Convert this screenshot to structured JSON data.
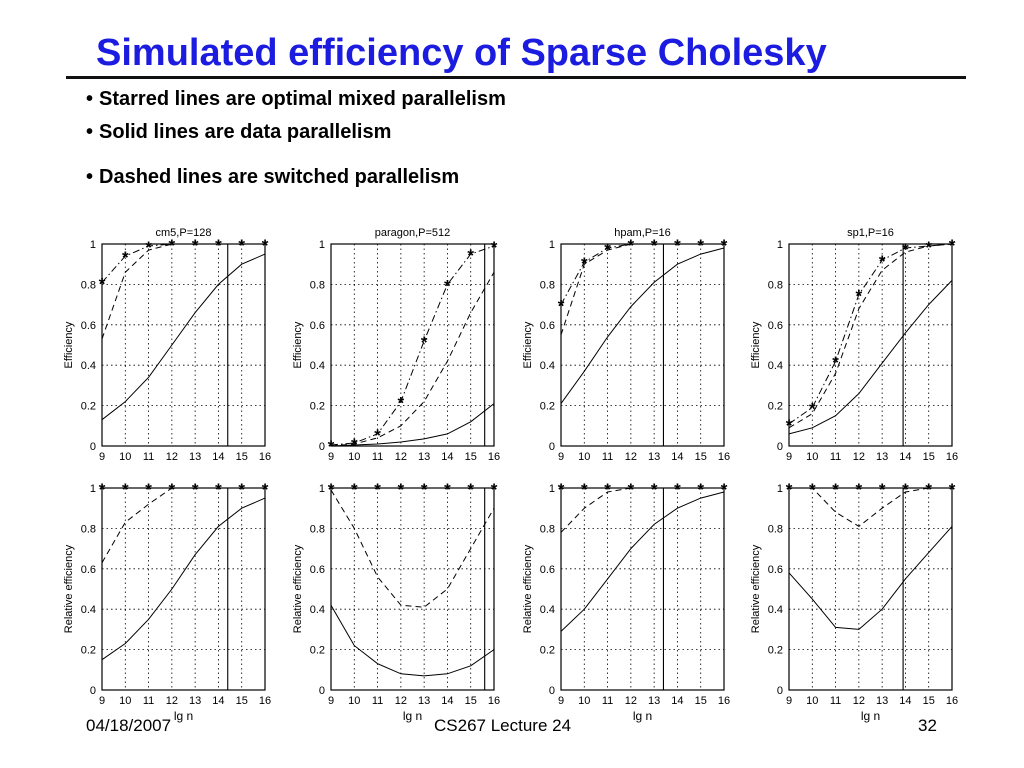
{
  "slide": {
    "title": "Simulated efficiency of Sparse Cholesky",
    "bullets": [
      "Starred lines are optimal mixed parallelism",
      "Solid lines are data parallelism",
      "Dashed lines are switched parallelism"
    ],
    "bullet_marker": "•",
    "title_color": "#1c1ce0",
    "footer": {
      "date": "04/18/2007",
      "course": "CS267 Lecture 24",
      "page": "32"
    }
  },
  "chart_data": [
    {
      "type": "line",
      "title": "cm5,P=128",
      "xlabel": "",
      "ylabel": "Efficiency",
      "x": [
        9,
        10,
        11,
        12,
        13,
        14,
        15,
        16
      ],
      "xlim": [
        9,
        16
      ],
      "ylim": [
        0,
        1
      ],
      "yticks": [
        "0",
        "0.2",
        "0.4",
        "0.6",
        "0.8",
        "1"
      ],
      "grid": true,
      "vline": 14.4,
      "series": [
        {
          "style": "solid",
          "values": [
            0.13,
            0.22,
            0.34,
            0.5,
            0.66,
            0.8,
            0.9,
            0.95
          ]
        },
        {
          "style": "dashed",
          "values": [
            0.53,
            0.86,
            0.97,
            1.0,
            1.0,
            1.0,
            1.0,
            1.0
          ]
        },
        {
          "style": "starred",
          "values": [
            0.81,
            0.94,
            0.99,
            1.0,
            1.0,
            1.0,
            1.0,
            1.0
          ]
        }
      ]
    },
    {
      "type": "line",
      "title": "paragon,P=512",
      "xlabel": "",
      "ylabel": "Efficiency",
      "x": [
        9,
        10,
        11,
        12,
        13,
        14,
        15,
        16
      ],
      "xlim": [
        9,
        16
      ],
      "ylim": [
        0,
        1
      ],
      "yticks": [
        "0",
        "0.2",
        "0.4",
        "0.6",
        "0.8",
        "1"
      ],
      "grid": true,
      "vline": 15.6,
      "series": [
        {
          "style": "solid",
          "values": [
            0.0,
            0.005,
            0.01,
            0.02,
            0.035,
            0.06,
            0.12,
            0.21
          ]
        },
        {
          "style": "dashed",
          "values": [
            0.0,
            0.01,
            0.04,
            0.1,
            0.22,
            0.42,
            0.66,
            0.86
          ]
        },
        {
          "style": "starred",
          "values": [
            0.005,
            0.015,
            0.06,
            0.22,
            0.52,
            0.8,
            0.95,
            0.99
          ]
        }
      ]
    },
    {
      "type": "line",
      "title": "hpam,P=16",
      "xlabel": "",
      "ylabel": "Efficiency",
      "x": [
        9,
        10,
        11,
        12,
        13,
        14,
        15,
        16
      ],
      "xlim": [
        9,
        16
      ],
      "ylim": [
        0,
        1
      ],
      "yticks": [
        "0",
        "0.2",
        "0.4",
        "0.6",
        "0.8",
        "1"
      ],
      "grid": true,
      "vline": 13.4,
      "series": [
        {
          "style": "solid",
          "values": [
            0.21,
            0.37,
            0.54,
            0.69,
            0.81,
            0.9,
            0.95,
            0.98
          ]
        },
        {
          "style": "dashed",
          "values": [
            0.55,
            0.9,
            0.97,
            1.0,
            1.0,
            1.0,
            1.0,
            1.0
          ]
        },
        {
          "style": "starred",
          "values": [
            0.7,
            0.91,
            0.98,
            1.0,
            1.0,
            1.0,
            1.0,
            1.0
          ]
        }
      ]
    },
    {
      "type": "line",
      "title": "sp1,P=16",
      "xlabel": "",
      "ylabel": "Efficiency",
      "x": [
        9,
        10,
        11,
        12,
        13,
        14,
        15,
        16
      ],
      "xlim": [
        9,
        16
      ],
      "ylim": [
        0,
        1
      ],
      "yticks": [
        "0",
        "0.2",
        "0.4",
        "0.6",
        "0.8",
        "1"
      ],
      "grid": true,
      "vline": 13.9,
      "series": [
        {
          "style": "solid",
          "values": [
            0.06,
            0.09,
            0.15,
            0.26,
            0.41,
            0.56,
            0.7,
            0.82
          ]
        },
        {
          "style": "dashed",
          "values": [
            0.09,
            0.16,
            0.36,
            0.68,
            0.87,
            0.96,
            0.99,
            1.0
          ]
        },
        {
          "style": "starred",
          "values": [
            0.11,
            0.19,
            0.42,
            0.75,
            0.92,
            0.98,
            0.99,
            1.0
          ]
        }
      ]
    },
    {
      "type": "line",
      "title": "",
      "xlabel": "lg n",
      "ylabel": "Relative efficiency",
      "x": [
        9,
        10,
        11,
        12,
        13,
        14,
        15,
        16
      ],
      "xlim": [
        9,
        16
      ],
      "ylim": [
        0,
        1
      ],
      "yticks": [
        "0",
        "0.2",
        "0.4",
        "0.6",
        "0.8",
        "1"
      ],
      "grid": true,
      "vline": 14.4,
      "series": [
        {
          "style": "solid",
          "values": [
            0.15,
            0.23,
            0.35,
            0.5,
            0.67,
            0.81,
            0.9,
            0.95
          ]
        },
        {
          "style": "dashed",
          "values": [
            0.63,
            0.83,
            0.92,
            1.0,
            1.0,
            1.0,
            1.0,
            1.0
          ]
        },
        {
          "style": "starred",
          "values": [
            1.0,
            1.0,
            1.0,
            1.0,
            1.0,
            1.0,
            1.0,
            1.0
          ]
        }
      ]
    },
    {
      "type": "line",
      "title": "",
      "xlabel": "lg n",
      "ylabel": "Relative efficiency",
      "x": [
        9,
        10,
        11,
        12,
        13,
        14,
        15,
        16
      ],
      "xlim": [
        9,
        16
      ],
      "ylim": [
        0,
        1
      ],
      "yticks": [
        "0",
        "0.2",
        "0.4",
        "0.6",
        "0.8",
        "1"
      ],
      "grid": true,
      "vline": 15.6,
      "series": [
        {
          "style": "solid",
          "values": [
            0.42,
            0.22,
            0.13,
            0.08,
            0.07,
            0.08,
            0.12,
            0.2
          ]
        },
        {
          "style": "dashed",
          "values": [
            0.99,
            0.8,
            0.56,
            0.42,
            0.41,
            0.5,
            0.7,
            0.9
          ]
        },
        {
          "style": "starred",
          "values": [
            1.0,
            1.0,
            1.0,
            1.0,
            1.0,
            1.0,
            1.0,
            1.0
          ]
        }
      ]
    },
    {
      "type": "line",
      "title": "",
      "xlabel": "lg n",
      "ylabel": "Relative efficiency",
      "x": [
        9,
        10,
        11,
        12,
        13,
        14,
        15,
        16
      ],
      "xlim": [
        9,
        16
      ],
      "ylim": [
        0,
        1
      ],
      "yticks": [
        "0",
        "0.2",
        "0.4",
        "0.6",
        "0.8",
        "1"
      ],
      "grid": true,
      "vline": 13.4,
      "series": [
        {
          "style": "solid",
          "values": [
            0.29,
            0.4,
            0.55,
            0.7,
            0.82,
            0.9,
            0.95,
            0.98
          ]
        },
        {
          "style": "dashed",
          "values": [
            0.78,
            0.9,
            0.98,
            1.0,
            1.0,
            1.0,
            1.0,
            1.0
          ]
        },
        {
          "style": "starred",
          "values": [
            1.0,
            1.0,
            1.0,
            1.0,
            1.0,
            1.0,
            1.0,
            1.0
          ]
        }
      ]
    },
    {
      "type": "line",
      "title": "",
      "xlabel": "lg n",
      "ylabel": "Relative efficiency",
      "x": [
        9,
        10,
        11,
        12,
        13,
        14,
        15,
        16
      ],
      "xlim": [
        9,
        16
      ],
      "ylim": [
        0,
        1
      ],
      "yticks": [
        "0",
        "0.2",
        "0.4",
        "0.6",
        "0.8",
        "1"
      ],
      "grid": true,
      "vline": 13.9,
      "series": [
        {
          "style": "solid",
          "values": [
            0.58,
            0.45,
            0.31,
            0.3,
            0.4,
            0.55,
            0.68,
            0.81
          ]
        },
        {
          "style": "dashed",
          "values": [
            1.0,
            1.0,
            0.88,
            0.81,
            0.9,
            0.98,
            1.0,
            1.0
          ]
        },
        {
          "style": "starred",
          "values": [
            1.0,
            1.0,
            1.0,
            1.0,
            1.0,
            1.0,
            1.0,
            1.0
          ]
        }
      ]
    }
  ]
}
